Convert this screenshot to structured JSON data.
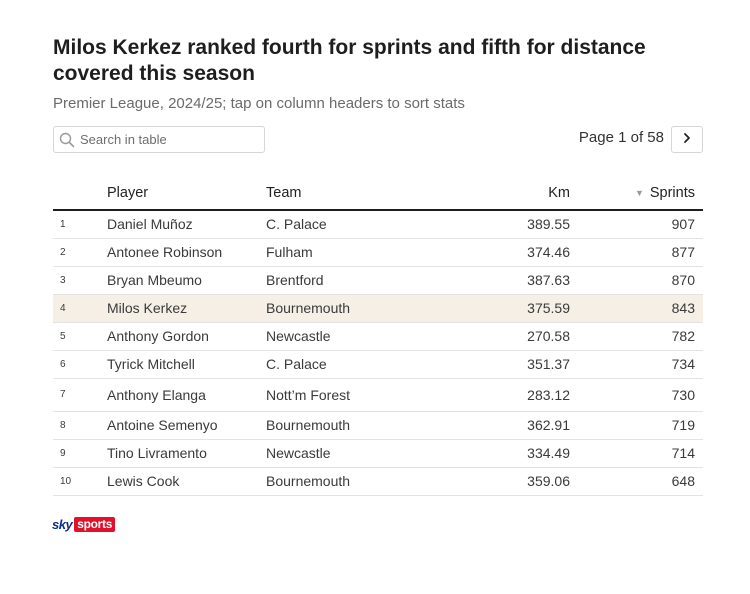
{
  "header": {
    "title": "Milos Kerkez ranked fourth for sprints and fifth for distance covered this season",
    "subtitle": "Premier League, 2024/25; tap on column headers to sort stats"
  },
  "search": {
    "placeholder": "Search in table",
    "icon": "search-icon"
  },
  "pager": {
    "label": "Page 1 of 58",
    "next_icon": "chevron-right-icon"
  },
  "table": {
    "columns": {
      "rank": "",
      "player": "Player",
      "team": "Team",
      "km": "Km",
      "sprints": "Sprints"
    },
    "sort_indicator": "▼",
    "highlight_color": "#f6efe6",
    "rows": [
      {
        "rank": "1",
        "player": "Daniel Muñoz",
        "team": "C. Palace",
        "km": "389.55",
        "sprints": "907"
      },
      {
        "rank": "2",
        "player": "Antonee Robinson",
        "team": "Fulham",
        "km": "374.46",
        "sprints": "877"
      },
      {
        "rank": "3",
        "player": "Bryan Mbeumo",
        "team": "Brentford",
        "km": "387.63",
        "sprints": "870"
      },
      {
        "rank": "4",
        "player": "Milos Kerkez",
        "team": "Bournemouth",
        "km": "375.59",
        "sprints": "843"
      },
      {
        "rank": "5",
        "player": "Anthony Gordon",
        "team": "Newcastle",
        "km": "270.58",
        "sprints": "782"
      },
      {
        "rank": "6",
        "player": "Tyrick Mitchell",
        "team": "C. Palace",
        "km": "351.37",
        "sprints": "734"
      },
      {
        "rank": "7",
        "player": "Anthony Elanga",
        "team": "Nott’m Forest",
        "km": "283.12",
        "sprints": "730"
      },
      {
        "rank": "8",
        "player": "Antoine Semenyo",
        "team": "Bournemouth",
        "km": "362.91",
        "sprints": "719"
      },
      {
        "rank": "9",
        "player": "Tino Livramento",
        "team": "Newcastle",
        "km": "334.49",
        "sprints": "714"
      },
      {
        "rank": "10",
        "player": "Lewis Cook",
        "team": "Bournemouth",
        "km": "359.06",
        "sprints": "648"
      }
    ]
  },
  "footer": {
    "logo_sky": "sky",
    "logo_sports": "sports",
    "brand_blue": "#0a2f8c",
    "brand_red": "#e0112b"
  }
}
